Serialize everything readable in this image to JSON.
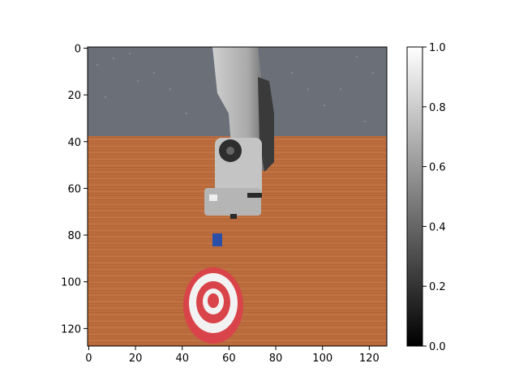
{
  "x_axis": {
    "ticks": [
      "0",
      "20",
      "40",
      "60",
      "80",
      "100",
      "120"
    ],
    "values": [
      0,
      20,
      40,
      60,
      80,
      100,
      120
    ],
    "range": [
      0,
      128
    ]
  },
  "y_axis": {
    "ticks": [
      "0",
      "20",
      "40",
      "60",
      "80",
      "100",
      "120"
    ],
    "values": [
      0,
      20,
      40,
      60,
      80,
      100,
      120
    ],
    "range": [
      0,
      128
    ]
  },
  "colorbar": {
    "ticks": [
      "0.0",
      "0.2",
      "0.4",
      "0.6",
      "0.8",
      "1.0"
    ],
    "values": [
      0,
      0.2,
      0.4,
      0.6,
      0.8,
      1.0
    ],
    "range": [
      0,
      1
    ],
    "colormap": "gray"
  },
  "scene": {
    "description_colors": {
      "floor": "#6b6f78",
      "table": "#b86a3e",
      "robot_arm": "#b8b8b8",
      "target_red": "#d9434a",
      "target_white": "#f2f2f2",
      "cube": "#2a4fa8"
    },
    "objects": [
      "robot-arm",
      "blue-cube",
      "red-white-target",
      "wooden-table",
      "grid-floor"
    ]
  }
}
